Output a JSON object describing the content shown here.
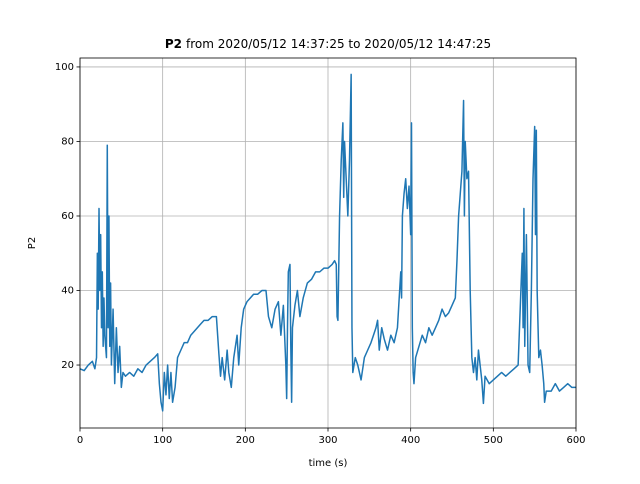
{
  "chart_data": {
    "type": "line",
    "title_parts": [
      "P2",
      "from 2020/05/12 14:37:25 to 2020/05/12 14:47:25"
    ],
    "x_label": "time (s)",
    "y_label": "P2",
    "xlim": [
      0,
      600
    ],
    "ylim": [
      3.1,
      102.4
    ],
    "xticks": [
      0,
      100,
      200,
      300,
      400,
      500,
      600
    ],
    "yticks": [
      20,
      40,
      60,
      80,
      100
    ],
    "grid": true,
    "x": [
      0,
      5,
      10,
      15,
      18,
      20,
      21,
      22,
      23,
      24,
      25,
      26,
      27,
      28,
      29,
      30,
      32,
      33,
      34,
      35,
      36,
      37,
      38,
      40,
      42,
      44,
      46,
      48,
      50,
      52,
      55,
      60,
      65,
      70,
      75,
      80,
      85,
      90,
      94,
      96,
      98,
      100,
      102,
      104,
      106,
      108,
      110,
      112,
      115,
      118,
      122,
      126,
      130,
      134,
      138,
      142,
      146,
      150,
      155,
      160,
      165,
      168,
      170,
      172,
      175,
      178,
      180,
      183,
      186,
      190,
      192,
      195,
      198,
      202,
      206,
      210,
      215,
      220,
      225,
      228,
      232,
      236,
      240,
      243,
      246,
      249,
      250,
      251,
      252,
      254,
      255,
      256,
      257,
      260,
      263,
      266,
      270,
      275,
      280,
      285,
      290,
      295,
      300,
      305,
      308,
      310,
      311,
      312,
      314,
      316,
      318,
      319,
      320,
      322,
      324,
      326,
      328,
      329,
      330,
      333,
      336,
      340,
      344,
      348,
      352,
      355,
      358,
      360,
      362,
      365,
      368,
      372,
      376,
      380,
      384,
      388,
      389,
      390,
      392,
      394,
      396,
      398,
      400,
      401,
      402,
      403,
      404,
      406,
      410,
      414,
      418,
      422,
      426,
      430,
      434,
      438,
      442,
      446,
      450,
      454,
      456,
      458,
      460,
      462,
      464,
      465,
      466,
      468,
      470,
      472,
      474,
      476,
      478,
      480,
      482,
      484,
      486,
      488,
      490,
      495,
      500,
      505,
      510,
      515,
      520,
      525,
      530,
      535,
      536,
      537,
      538,
      540,
      542,
      544,
      546,
      548,
      550,
      551,
      552,
      553,
      555,
      557,
      559,
      561,
      562,
      564,
      570,
      575,
      580,
      585,
      590,
      595,
      600
    ],
    "series": [
      {
        "name": "P2",
        "color": "#1f77b4",
        "values": [
          19,
          18.5,
          20,
          21,
          19,
          22,
          50,
          35,
          62,
          40,
          55,
          30,
          45,
          25,
          38,
          28,
          22,
          79,
          30,
          60,
          25,
          42,
          20,
          35,
          15,
          30,
          18,
          25,
          14,
          18,
          17,
          18,
          17,
          19,
          18,
          20,
          21,
          22,
          23,
          15,
          10,
          7.7,
          18,
          12,
          20,
          11,
          18,
          10,
          14,
          22,
          24,
          26,
          26,
          28,
          29,
          30,
          31,
          32,
          32,
          33,
          33,
          23,
          17,
          22,
          16,
          24,
          18,
          14,
          22,
          28,
          20,
          30,
          35,
          37,
          38,
          39,
          39,
          40,
          40,
          33,
          30,
          35,
          37,
          28,
          36,
          20,
          11,
          30,
          45,
          47,
          25,
          10,
          30,
          36,
          40,
          33,
          38,
          42,
          43,
          45,
          45,
          46,
          46,
          47,
          48,
          47,
          33,
          32,
          60,
          75,
          85,
          65,
          80,
          70,
          60,
          75,
          98,
          30,
          18,
          22,
          20,
          16,
          22,
          24,
          26,
          28,
          30,
          32,
          24,
          30,
          27,
          24,
          28,
          26,
          30,
          45,
          38,
          60,
          66,
          70,
          62,
          68,
          55,
          85,
          30,
          18,
          15,
          22,
          25,
          28,
          26,
          30,
          28,
          30,
          32,
          35,
          33,
          34,
          36,
          38,
          48,
          60,
          66,
          72,
          91,
          60,
          80,
          70,
          72,
          40,
          22,
          18,
          22,
          16,
          24,
          20,
          16,
          9.7,
          17,
          15,
          16,
          17,
          18,
          17,
          18,
          19,
          20,
          50,
          30,
          62,
          25,
          55,
          20,
          18,
          40,
          70,
          84,
          55,
          83,
          40,
          22,
          24,
          20,
          15,
          10,
          13,
          13,
          15,
          13,
          14,
          15,
          14,
          14
        ]
      }
    ]
  }
}
